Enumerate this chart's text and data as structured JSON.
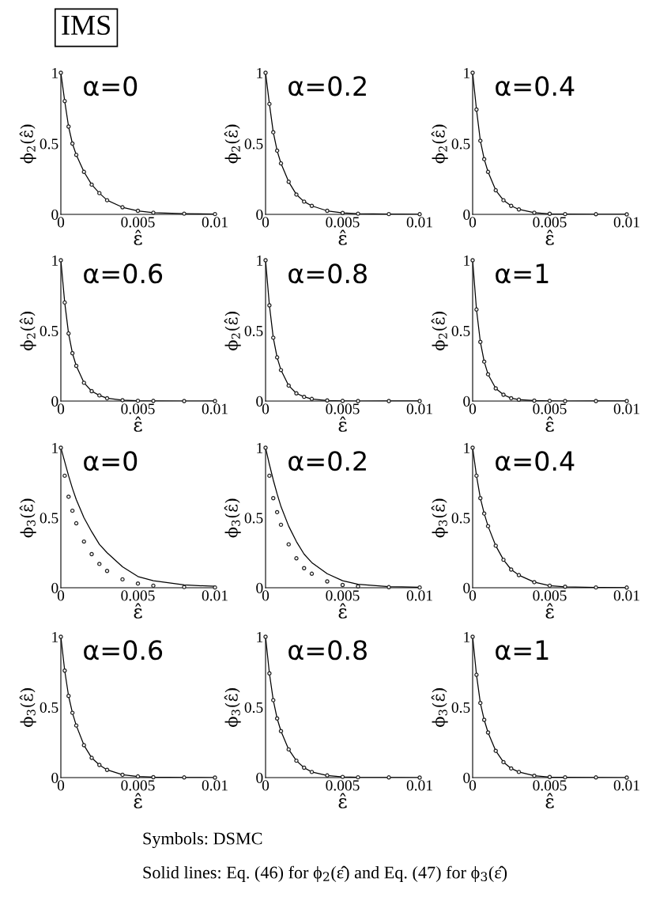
{
  "chart_data": [
    {
      "type": "line",
      "title": "IMS",
      "annotations": [
        "α=0"
      ],
      "ylabel": "ϕ$_{2}$(ε̂)",
      "xlabel": "ε̂",
      "x": [
        0,
        0.00025,
        0.0005,
        0.00075,
        0.001,
        0.0015,
        0.002,
        0.0025,
        0.003,
        0.004,
        0.005,
        0.006,
        0.008,
        0.01
      ],
      "xlim": [
        0,
        0.01
      ],
      "ylim": [
        0,
        1
      ],
      "xticks": [
        0,
        0.005,
        0.01
      ],
      "yticks": [
        0,
        0.5,
        1
      ],
      "grid": false,
      "legend": false,
      "series": [
        {
          "type": "scatter",
          "marker": "circle",
          "color": "#222222",
          "values": [
            1,
            0.8,
            0.62,
            0.5,
            0.42,
            0.3,
            0.21,
            0.15,
            0.1,
            0.05,
            0.025,
            0.012,
            0.005,
            0.002
          ]
        },
        {
          "type": "line",
          "marker": "none",
          "color": "#000000",
          "values": [
            1,
            0.8,
            0.62,
            0.5,
            0.42,
            0.3,
            0.21,
            0.15,
            0.1,
            0.05,
            0.025,
            0.012,
            0.005,
            0.002
          ]
        }
      ]
    },
    {
      "type": "line",
      "annotations": [
        "α=0.2"
      ],
      "ylabel": "ϕ$_{2}$(ε̂)",
      "xlabel": "ε̂",
      "x": [
        0,
        0.00025,
        0.0005,
        0.00075,
        0.001,
        0.0015,
        0.002,
        0.0025,
        0.003,
        0.004,
        0.005,
        0.006,
        0.008,
        0.01
      ],
      "xlim": [
        0,
        0.01
      ],
      "ylim": [
        0,
        1
      ],
      "xticks": [
        0,
        0.005,
        0.01
      ],
      "yticks": [
        0,
        0.5,
        1
      ],
      "grid": false,
      "legend": false,
      "series": [
        {
          "type": "scatter",
          "marker": "circle",
          "color": "#222222",
          "values": [
            1,
            0.78,
            0.58,
            0.45,
            0.36,
            0.23,
            0.14,
            0.09,
            0.06,
            0.025,
            0.01,
            0.005,
            0.002,
            0.001
          ]
        },
        {
          "type": "line",
          "marker": "none",
          "color": "#000000",
          "values": [
            1,
            0.78,
            0.58,
            0.45,
            0.36,
            0.23,
            0.14,
            0.09,
            0.06,
            0.025,
            0.01,
            0.005,
            0.002,
            0.001
          ]
        }
      ]
    },
    {
      "type": "line",
      "annotations": [
        "α=0.4"
      ],
      "ylabel": "ϕ$_{2}$(ε̂)",
      "xlabel": "ε̂",
      "x": [
        0,
        0.00025,
        0.0005,
        0.00075,
        0.001,
        0.0015,
        0.002,
        0.0025,
        0.003,
        0.004,
        0.005,
        0.006,
        0.008,
        0.01
      ],
      "xlim": [
        0,
        0.01
      ],
      "ylim": [
        0,
        1
      ],
      "xticks": [
        0,
        0.005,
        0.01
      ],
      "yticks": [
        0,
        0.5,
        1
      ],
      "grid": false,
      "legend": false,
      "series": [
        {
          "type": "scatter",
          "marker": "circle",
          "color": "#222222",
          "values": [
            1,
            0.74,
            0.52,
            0.39,
            0.3,
            0.17,
            0.1,
            0.06,
            0.035,
            0.012,
            0.004,
            0.002,
            0.001,
            0
          ]
        },
        {
          "type": "line",
          "marker": "none",
          "color": "#000000",
          "values": [
            1,
            0.74,
            0.52,
            0.39,
            0.3,
            0.17,
            0.1,
            0.06,
            0.035,
            0.012,
            0.004,
            0.002,
            0.001,
            0
          ]
        }
      ]
    },
    {
      "type": "line",
      "annotations": [
        "α=0.6"
      ],
      "ylabel": "ϕ$_{2}$(ε̂)",
      "xlabel": "ε̂",
      "x": [
        0,
        0.00025,
        0.0005,
        0.00075,
        0.001,
        0.0015,
        0.002,
        0.0025,
        0.003,
        0.004,
        0.005,
        0.006,
        0.008,
        0.01
      ],
      "xlim": [
        0,
        0.01
      ],
      "ylim": [
        0,
        1
      ],
      "xticks": [
        0,
        0.005,
        0.01
      ],
      "yticks": [
        0,
        0.5,
        1
      ],
      "grid": false,
      "legend": false,
      "series": [
        {
          "type": "scatter",
          "marker": "circle",
          "color": "#222222",
          "values": [
            1,
            0.7,
            0.48,
            0.34,
            0.25,
            0.13,
            0.07,
            0.04,
            0.02,
            0.006,
            0.002,
            0.001,
            0,
            0
          ]
        },
        {
          "type": "line",
          "marker": "none",
          "color": "#000000",
          "values": [
            1,
            0.7,
            0.48,
            0.34,
            0.25,
            0.13,
            0.07,
            0.04,
            0.02,
            0.006,
            0.002,
            0.001,
            0,
            0
          ]
        }
      ]
    },
    {
      "type": "line",
      "annotations": [
        "α=0.8"
      ],
      "ylabel": "ϕ$_{2}$(ε̂)",
      "xlabel": "ε̂",
      "x": [
        0,
        0.00025,
        0.0005,
        0.00075,
        0.001,
        0.0015,
        0.002,
        0.0025,
        0.003,
        0.004,
        0.005,
        0.006,
        0.008,
        0.01
      ],
      "xlim": [
        0,
        0.01
      ],
      "ylim": [
        0,
        1
      ],
      "xticks": [
        0,
        0.005,
        0.01
      ],
      "yticks": [
        0,
        0.5,
        1
      ],
      "grid": false,
      "legend": false,
      "series": [
        {
          "type": "scatter",
          "marker": "circle",
          "color": "#222222",
          "values": [
            1,
            0.68,
            0.45,
            0.31,
            0.22,
            0.11,
            0.055,
            0.03,
            0.015,
            0.004,
            0.001,
            0,
            0,
            0
          ]
        },
        {
          "type": "line",
          "marker": "none",
          "color": "#000000",
          "values": [
            1,
            0.68,
            0.45,
            0.31,
            0.22,
            0.11,
            0.055,
            0.03,
            0.015,
            0.004,
            0.001,
            0,
            0,
            0
          ]
        }
      ]
    },
    {
      "type": "line",
      "annotations": [
        "α=1"
      ],
      "ylabel": "ϕ$_{2}$(ε̂)",
      "xlabel": "ε̂",
      "x": [
        0,
        0.00025,
        0.0005,
        0.00075,
        0.001,
        0.0015,
        0.002,
        0.0025,
        0.003,
        0.004,
        0.005,
        0.006,
        0.008,
        0.01
      ],
      "xlim": [
        0,
        0.01
      ],
      "ylim": [
        0,
        1
      ],
      "xticks": [
        0,
        0.005,
        0.01
      ],
      "yticks": [
        0,
        0.5,
        1
      ],
      "grid": false,
      "legend": false,
      "series": [
        {
          "type": "scatter",
          "marker": "circle",
          "color": "#222222",
          "values": [
            1,
            0.65,
            0.42,
            0.28,
            0.19,
            0.09,
            0.045,
            0.02,
            0.01,
            0.003,
            0.001,
            0,
            0,
            0
          ]
        },
        {
          "type": "line",
          "marker": "none",
          "color": "#000000",
          "values": [
            1,
            0.65,
            0.42,
            0.28,
            0.19,
            0.09,
            0.045,
            0.02,
            0.01,
            0.003,
            0.001,
            0,
            0,
            0
          ]
        }
      ]
    },
    {
      "type": "line",
      "annotations": [
        "α=0"
      ],
      "ylabel": "ϕ$_{3}$(ε̂)",
      "xlabel": "ε̂",
      "x": [
        0,
        0.00025,
        0.0005,
        0.00075,
        0.001,
        0.0015,
        0.002,
        0.0025,
        0.003,
        0.004,
        0.005,
        0.006,
        0.008,
        0.01
      ],
      "xlim": [
        0,
        0.01
      ],
      "ylim": [
        0,
        1
      ],
      "xticks": [
        0,
        0.005,
        0.01
      ],
      "yticks": [
        0,
        0.5,
        1
      ],
      "grid": false,
      "legend": false,
      "series": [
        {
          "type": "scatter",
          "marker": "circle",
          "color": "#222222",
          "values": [
            1,
            0.8,
            0.65,
            0.55,
            0.46,
            0.33,
            0.24,
            0.17,
            0.12,
            0.06,
            0.03,
            0.015,
            0.005,
            0.002
          ]
        },
        {
          "type": "line",
          "marker": "none",
          "color": "#000000",
          "values": [
            1,
            0.9,
            0.8,
            0.71,
            0.63,
            0.5,
            0.4,
            0.31,
            0.25,
            0.15,
            0.08,
            0.05,
            0.02,
            0.01
          ]
        }
      ]
    },
    {
      "type": "line",
      "annotations": [
        "α=0.2"
      ],
      "ylabel": "ϕ$_{3}$(ε̂)",
      "xlabel": "ε̂",
      "x": [
        0,
        0.00025,
        0.0005,
        0.00075,
        0.001,
        0.0015,
        0.002,
        0.0025,
        0.003,
        0.004,
        0.005,
        0.006,
        0.008,
        0.01
      ],
      "xlim": [
        0,
        0.01
      ],
      "ylim": [
        0,
        1
      ],
      "xticks": [
        0,
        0.005,
        0.01
      ],
      "yticks": [
        0,
        0.5,
        1
      ],
      "grid": false,
      "legend": false,
      "series": [
        {
          "type": "scatter",
          "marker": "circle",
          "color": "#222222",
          "values": [
            1,
            0.8,
            0.64,
            0.54,
            0.45,
            0.31,
            0.21,
            0.14,
            0.1,
            0.045,
            0.02,
            0.01,
            0.004,
            0.002
          ]
        },
        {
          "type": "line",
          "marker": "none",
          "color": "#000000",
          "values": [
            1,
            0.88,
            0.77,
            0.67,
            0.58,
            0.44,
            0.33,
            0.24,
            0.18,
            0.1,
            0.05,
            0.025,
            0.008,
            0.003
          ]
        }
      ]
    },
    {
      "type": "line",
      "annotations": [
        "α=0.4"
      ],
      "ylabel": "ϕ$_{3}$(ε̂)",
      "xlabel": "ε̂",
      "x": [
        0,
        0.00025,
        0.0005,
        0.00075,
        0.001,
        0.0015,
        0.002,
        0.0025,
        0.003,
        0.004,
        0.005,
        0.006,
        0.008,
        0.01
      ],
      "xlim": [
        0,
        0.01
      ],
      "ylim": [
        0,
        1
      ],
      "xticks": [
        0,
        0.005,
        0.01
      ],
      "yticks": [
        0,
        0.5,
        1
      ],
      "grid": false,
      "legend": false,
      "series": [
        {
          "type": "scatter",
          "marker": "circle",
          "color": "#222222",
          "values": [
            1,
            0.8,
            0.64,
            0.53,
            0.44,
            0.3,
            0.2,
            0.13,
            0.09,
            0.04,
            0.015,
            0.007,
            0.002,
            0.001
          ]
        },
        {
          "type": "line",
          "marker": "none",
          "color": "#000000",
          "values": [
            1,
            0.8,
            0.64,
            0.53,
            0.44,
            0.3,
            0.2,
            0.13,
            0.09,
            0.04,
            0.015,
            0.007,
            0.002,
            0.001
          ]
        }
      ]
    },
    {
      "type": "line",
      "annotations": [
        "α=0.6"
      ],
      "ylabel": "ϕ$_{3}$(ε̂)",
      "xlabel": "ε̂",
      "x": [
        0,
        0.00025,
        0.0005,
        0.00075,
        0.001,
        0.0015,
        0.002,
        0.0025,
        0.003,
        0.004,
        0.005,
        0.006,
        0.008,
        0.01
      ],
      "xlim": [
        0,
        0.01
      ],
      "ylim": [
        0,
        1
      ],
      "xticks": [
        0,
        0.005,
        0.01
      ],
      "yticks": [
        0,
        0.5,
        1
      ],
      "grid": false,
      "legend": false,
      "series": [
        {
          "type": "scatter",
          "marker": "circle",
          "color": "#222222",
          "values": [
            1,
            0.76,
            0.58,
            0.46,
            0.37,
            0.23,
            0.14,
            0.09,
            0.055,
            0.02,
            0.008,
            0.003,
            0.001,
            0
          ]
        },
        {
          "type": "line",
          "marker": "none",
          "color": "#000000",
          "values": [
            1,
            0.76,
            0.58,
            0.46,
            0.37,
            0.23,
            0.14,
            0.09,
            0.055,
            0.02,
            0.008,
            0.003,
            0.001,
            0
          ]
        }
      ]
    },
    {
      "type": "line",
      "annotations": [
        "α=0.8"
      ],
      "ylabel": "ϕ$_{3}$(ε̂)",
      "xlabel": "ε̂",
      "x": [
        0,
        0.00025,
        0.0005,
        0.00075,
        0.001,
        0.0015,
        0.002,
        0.0025,
        0.003,
        0.004,
        0.005,
        0.006,
        0.008,
        0.01
      ],
      "xlim": [
        0,
        0.01
      ],
      "ylim": [
        0,
        1
      ],
      "xticks": [
        0,
        0.005,
        0.01
      ],
      "yticks": [
        0,
        0.5,
        1
      ],
      "grid": false,
      "legend": false,
      "series": [
        {
          "type": "scatter",
          "marker": "circle",
          "color": "#222222",
          "values": [
            1,
            0.74,
            0.55,
            0.42,
            0.33,
            0.2,
            0.12,
            0.07,
            0.04,
            0.015,
            0.005,
            0.002,
            0.001,
            0
          ]
        },
        {
          "type": "line",
          "marker": "none",
          "color": "#000000",
          "values": [
            1,
            0.74,
            0.55,
            0.42,
            0.33,
            0.2,
            0.12,
            0.07,
            0.04,
            0.015,
            0.005,
            0.002,
            0.001,
            0
          ]
        }
      ]
    },
    {
      "type": "line",
      "annotations": [
        "α=1",
        "Symbols: DSMC",
        "Solid lines: Eq. (46) for ϕ$_{2}$(ε̂) and Eq. (47) for ϕ$_{3}$(ε̂)"
      ],
      "ylabel": "ϕ$_{3}$(ε̂)",
      "xlabel": "ε̂",
      "x": [
        0,
        0.00025,
        0.0005,
        0.00075,
        0.001,
        0.0015,
        0.002,
        0.0025,
        0.003,
        0.004,
        0.005,
        0.006,
        0.008,
        0.01
      ],
      "xlim": [
        0,
        0.01
      ],
      "ylim": [
        0,
        1
      ],
      "xticks": [
        0,
        0.005,
        0.01
      ],
      "yticks": [
        0,
        0.5,
        1
      ],
      "grid": false,
      "legend": false,
      "series": [
        {
          "type": "scatter",
          "marker": "circle",
          "color": "#222222",
          "values": [
            1,
            0.73,
            0.53,
            0.41,
            0.32,
            0.19,
            0.11,
            0.065,
            0.04,
            0.013,
            0.004,
            0.002,
            0.001,
            0
          ]
        },
        {
          "type": "line",
          "marker": "none",
          "color": "#000000",
          "values": [
            1,
            0.73,
            0.53,
            0.41,
            0.32,
            0.19,
            0.11,
            0.065,
            0.04,
            0.013,
            0.004,
            0.002,
            0.001,
            0
          ]
        }
      ]
    }
  ]
}
